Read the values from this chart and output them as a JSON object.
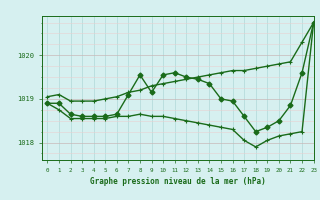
{
  "title": "Graphe pression niveau de la mer (hPa)",
  "bg_color": "#d6f0f0",
  "grid_color": "#b0d8d8",
  "line_color": "#1a6b1a",
  "xlim": [
    -0.5,
    23
  ],
  "ylim": [
    1017.6,
    1020.9
  ],
  "yticks": [
    1018,
    1019,
    1020
  ],
  "xticks": [
    0,
    1,
    2,
    3,
    4,
    5,
    6,
    7,
    8,
    9,
    10,
    11,
    12,
    13,
    14,
    15,
    16,
    17,
    18,
    19,
    20,
    21,
    22,
    23
  ],
  "hours": [
    0,
    1,
    2,
    3,
    4,
    5,
    6,
    7,
    8,
    9,
    10,
    11,
    12,
    13,
    14,
    15,
    16,
    17,
    18,
    19,
    20,
    21,
    22,
    23
  ],
  "line_top": [
    1019.05,
    1019.1,
    1018.95,
    1018.95,
    1018.95,
    1019.0,
    1019.05,
    1019.15,
    1019.2,
    1019.3,
    1019.35,
    1019.4,
    1019.45,
    1019.5,
    1019.55,
    1019.6,
    1019.65,
    1019.65,
    1019.7,
    1019.75,
    1019.8,
    1019.85,
    1020.3,
    1020.75
  ],
  "line_mid": [
    1018.9,
    1018.9,
    1018.65,
    1018.6,
    1018.6,
    1018.6,
    1018.65,
    1019.1,
    1019.55,
    1019.15,
    1019.55,
    1019.6,
    1019.5,
    1019.45,
    1019.35,
    1019.0,
    1018.95,
    1018.6,
    1018.25,
    1018.35,
    1018.5,
    1018.85,
    1019.6,
    1020.75
  ],
  "line_bot": [
    1018.9,
    1018.75,
    1018.55,
    1018.55,
    1018.55,
    1018.55,
    1018.6,
    1018.6,
    1018.65,
    1018.6,
    1018.6,
    1018.55,
    1018.5,
    1018.45,
    1018.4,
    1018.35,
    1018.3,
    1018.05,
    1017.9,
    1018.05,
    1018.15,
    1018.2,
    1018.25,
    1020.75
  ]
}
